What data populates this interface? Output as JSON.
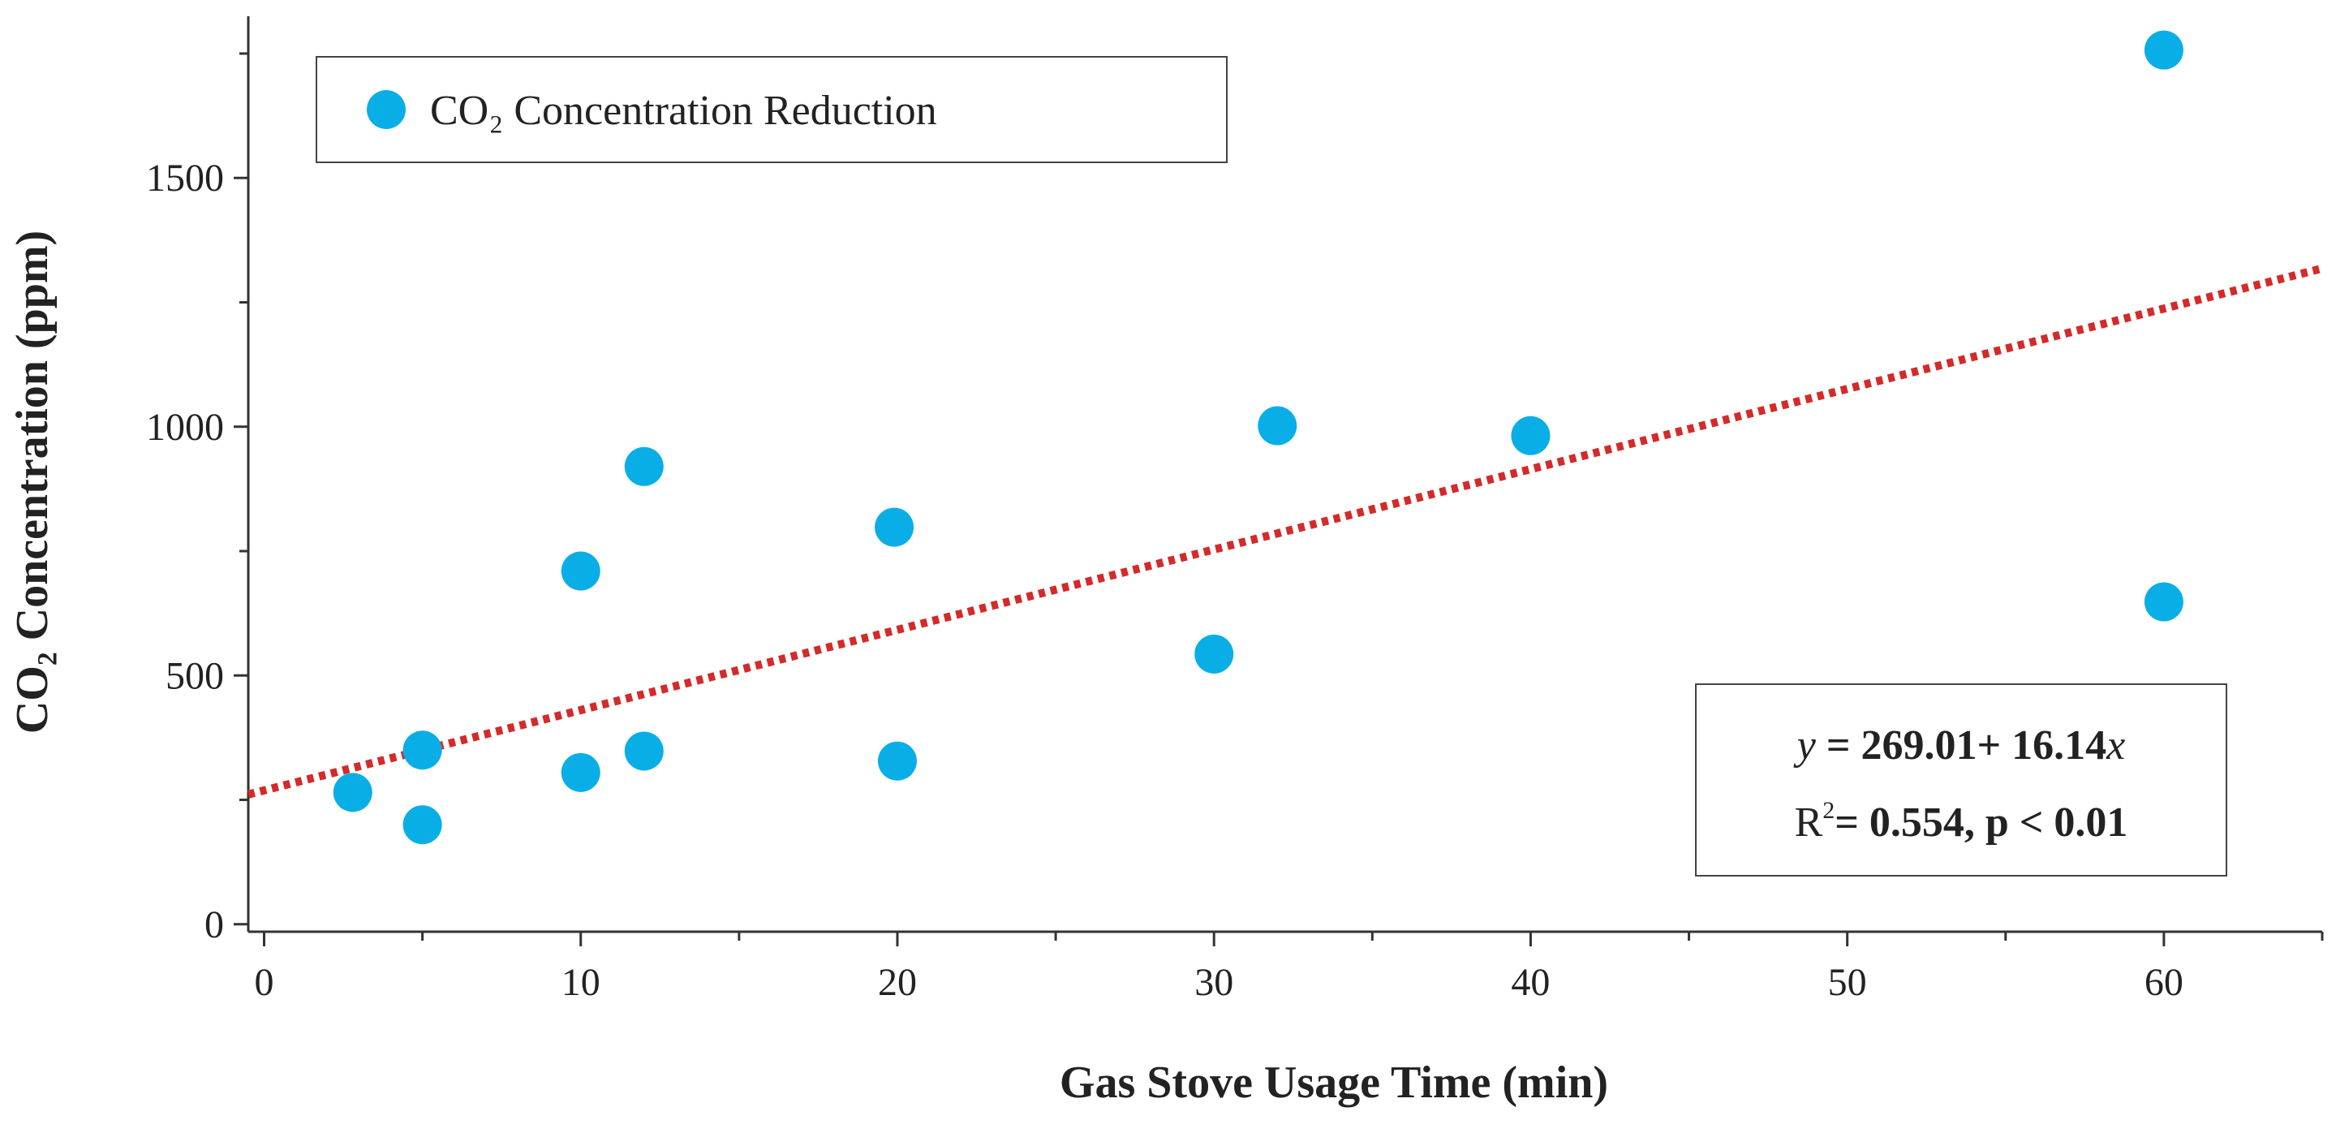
{
  "chart_data": {
    "type": "scatter",
    "xlabel": "Gas Stove Usage Time (min)",
    "ylabel": "CO₂ Concentration (ppm)",
    "xlim": [
      -0.5,
      65
    ],
    "ylim": [
      -15,
      1825
    ],
    "x_ticks": [
      0,
      10,
      20,
      30,
      40,
      50,
      60
    ],
    "x_tick_labels": [
      "0",
      "10",
      "20",
      "30",
      "40",
      "50",
      "60"
    ],
    "x_minor_ticks": [
      5,
      15,
      25,
      35,
      45,
      55,
      65
    ],
    "y_ticks": [
      0,
      500,
      1000,
      1500
    ],
    "y_tick_labels": [
      "0",
      "500",
      "1000",
      "1500"
    ],
    "y_minor_ticks": [
      250,
      750,
      1250,
      1750
    ],
    "grid": false,
    "legend_position": "top-left",
    "series": [
      {
        "name": "CO₂ Concentration Reduction",
        "color": "#0aaee6",
        "points": [
          {
            "x": 2.8,
            "y": 265
          },
          {
            "x": 5,
            "y": 350
          },
          {
            "x": 5,
            "y": 200
          },
          {
            "x": 10,
            "y": 305
          },
          {
            "x": 10,
            "y": 710
          },
          {
            "x": 12,
            "y": 920
          },
          {
            "x": 12,
            "y": 348
          },
          {
            "x": 19.9,
            "y": 798
          },
          {
            "x": 20,
            "y": 328
          },
          {
            "x": 30,
            "y": 543
          },
          {
            "x": 32,
            "y": 1002
          },
          {
            "x": 40,
            "y": 982
          },
          {
            "x": 60,
            "y": 648
          },
          {
            "x": 60,
            "y": 1757
          }
        ]
      }
    ],
    "trendline": {
      "intercept": 269.01,
      "slope": 16.14,
      "style": "dotted",
      "color": "#d42a2a",
      "x_range": [
        -0.5,
        65
      ]
    },
    "annotation": {
      "equation_line": {
        "y": "y",
        "eq": " = 269.01+ 16.14",
        "x": "x"
      },
      "r2_line": {
        "r": "R",
        "sup": "2",
        "rest": "= 0.554, p < 0.01"
      }
    }
  }
}
